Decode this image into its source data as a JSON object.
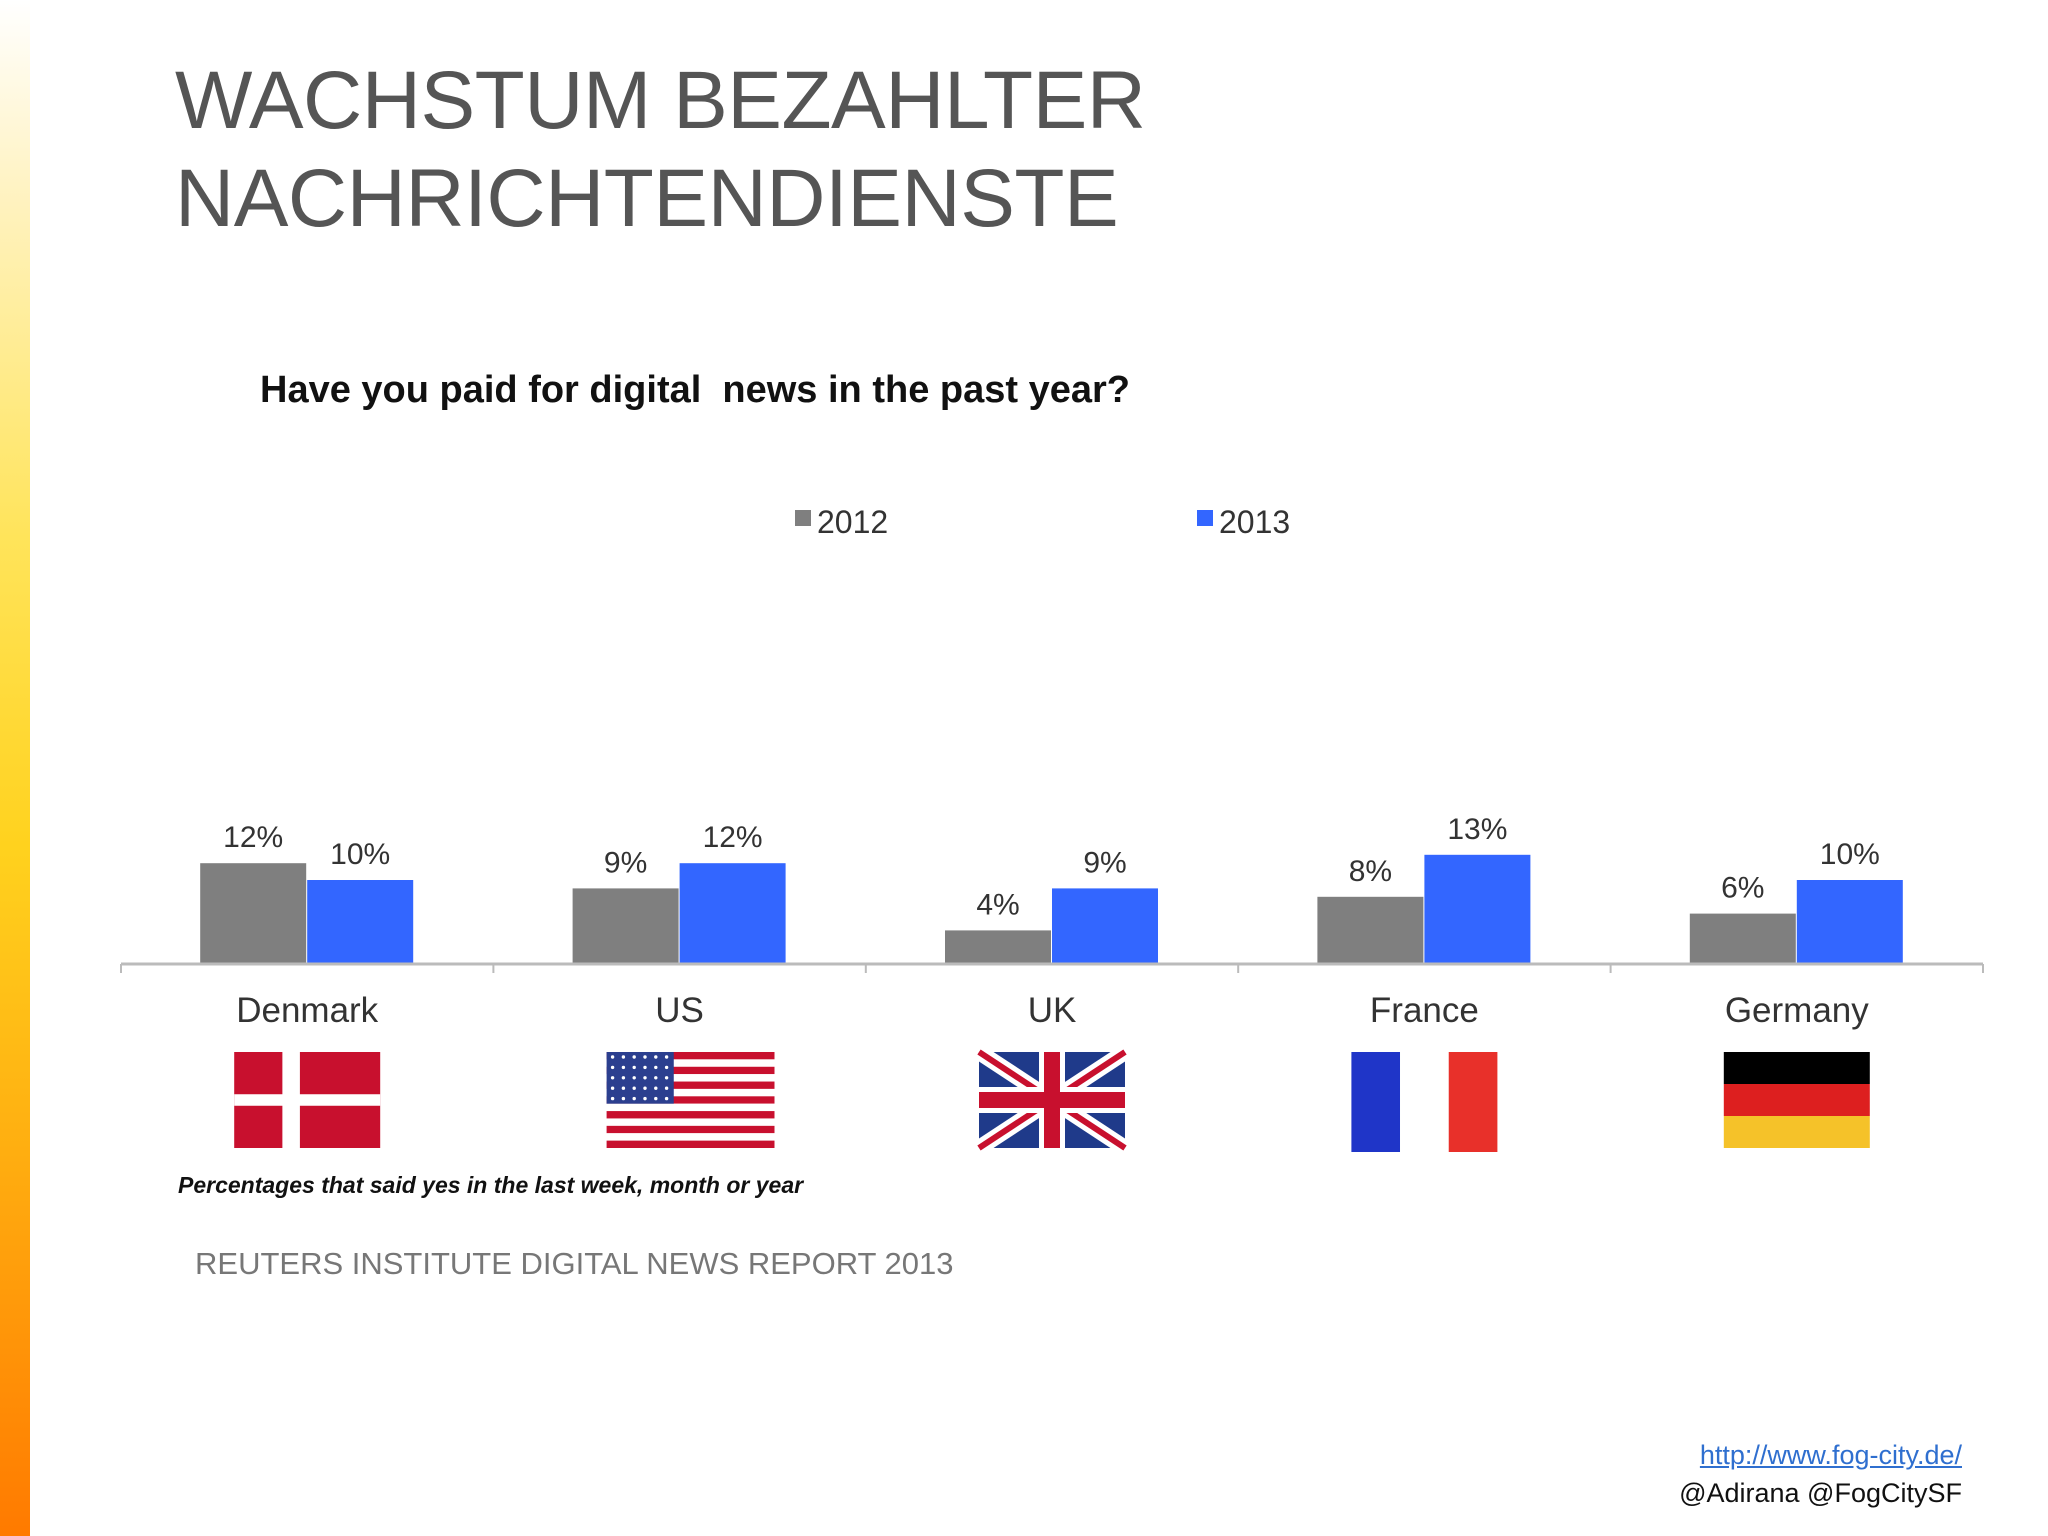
{
  "slide": {
    "title": "WACHSTUM BEZAHLTER\nNACHRICHTENDIENSTE",
    "footer_link": "http://www.fog-city.de/",
    "footer_handles": "@Adirana @FogCitySF"
  },
  "colors": {
    "accent_gradient_top": "#fff3c4",
    "accent_gradient_bottom": "#ff7a00",
    "series_2012": "#7f7f7f",
    "series_2013": "#3366ff"
  },
  "chart_data": {
    "type": "bar",
    "title": "Have you paid for digital  news in the past year?",
    "categories": [
      "Denmark",
      "US",
      "UK",
      "France",
      "Germany"
    ],
    "series": [
      {
        "name": "2012",
        "values": [
          12,
          9,
          4,
          8,
          6
        ],
        "labels": [
          "12%",
          "9%",
          "4%",
          "8%",
          "6%"
        ],
        "color": "#7f7f7f"
      },
      {
        "name": "2013",
        "values": [
          10,
          12,
          9,
          13,
          10
        ],
        "labels": [
          "10%",
          "12%",
          "9%",
          "13%",
          "10%"
        ],
        "color": "#3366ff"
      }
    ],
    "unit": "%",
    "legend_position": "top-center",
    "grid": false,
    "flags": [
      "denmark-flag",
      "us-flag",
      "uk-flag",
      "france-flag",
      "germany-flag"
    ],
    "note": "Percentages that said yes in the last week, month or year",
    "source": "REUTERS INSTITUTE DIGITAL NEWS REPORT 2013"
  }
}
